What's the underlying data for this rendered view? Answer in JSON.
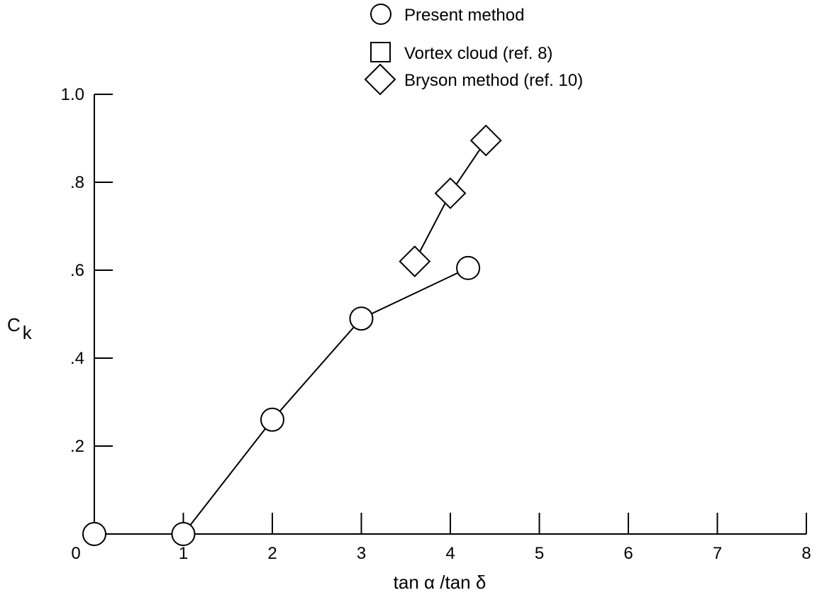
{
  "chart_data": {
    "type": "line",
    "xlabel": "tan α /tan δ",
    "ylabel": "C",
    "ylabel_sub": "k",
    "xlim": [
      0,
      8
    ],
    "ylim": [
      0,
      1.0
    ],
    "x_ticks": [
      {
        "value": 0,
        "label": "0"
      },
      {
        "value": 1,
        "label": "1"
      },
      {
        "value": 2,
        "label": "2"
      },
      {
        "value": 3,
        "label": "3"
      },
      {
        "value": 4,
        "label": "4"
      },
      {
        "value": 5,
        "label": "5"
      },
      {
        "value": 6,
        "label": "6"
      },
      {
        "value": 7,
        "label": "7"
      },
      {
        "value": 8,
        "label": "8"
      }
    ],
    "y_ticks": [
      {
        "value": 0.2,
        "label": ".2"
      },
      {
        "value": 0.4,
        "label": ".4"
      },
      {
        "value": 0.6,
        "label": ".6"
      },
      {
        "value": 0.8,
        "label": ".8"
      },
      {
        "value": 1.0,
        "label": "1.0"
      }
    ],
    "grid": false,
    "legend_position": "top-center",
    "legend": [
      {
        "name": "Present method",
        "marker": "circle"
      },
      {
        "name": "Vortex cloud (ref. 8)",
        "marker": "square"
      },
      {
        "name": "Bryson method (ref. 10)",
        "marker": "diamond"
      }
    ],
    "series": [
      {
        "name": "Present method",
        "marker": "circle",
        "points": [
          [
            0,
            0
          ],
          [
            1,
            0
          ],
          [
            2,
            0.26
          ],
          [
            3,
            0.49
          ],
          [
            4.2,
            0.605
          ]
        ]
      },
      {
        "name": "Bryson method (ref. 10)",
        "marker": "diamond",
        "points": [
          [
            3.6,
            0.62
          ],
          [
            4.0,
            0.775
          ],
          [
            4.4,
            0.895
          ]
        ]
      },
      {
        "name": "Vortex cloud (ref. 8)",
        "marker": "square",
        "points": []
      }
    ]
  }
}
